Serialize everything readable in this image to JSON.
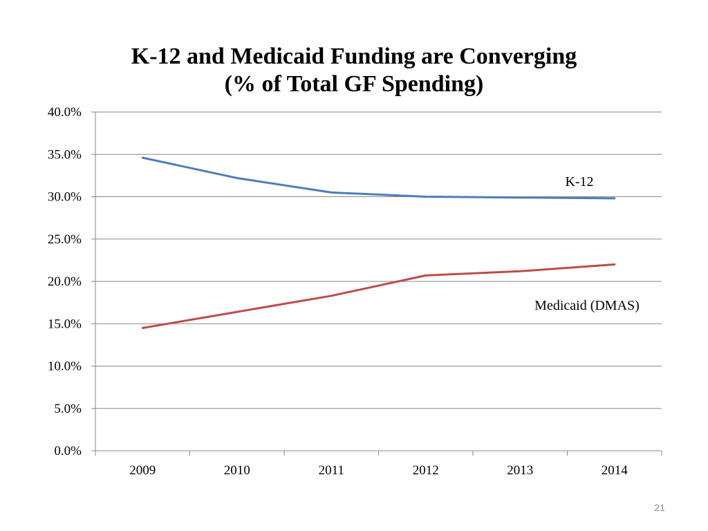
{
  "chart_data": {
    "type": "line",
    "title": "K-12 and Medicaid Funding are Converging",
    "subtitle": "(% of Total GF Spending)",
    "categories": [
      "2009",
      "2010",
      "2011",
      "2012",
      "2013",
      "2014"
    ],
    "series": [
      {
        "name": "K-12",
        "values": [
          34.6,
          32.2,
          30.5,
          30.0,
          29.9,
          29.8
        ],
        "color": "#4a7ebb"
      },
      {
        "name": "Medicaid (DMAS)",
        "values": [
          14.5,
          16.4,
          18.3,
          20.7,
          21.2,
          22.0
        ],
        "color": "#be4b48"
      }
    ],
    "ylim": [
      0,
      40
    ],
    "yticks": [
      0,
      5,
      10,
      15,
      20,
      25,
      30,
      35,
      40
    ],
    "ytick_labels": [
      "0.0%",
      "5.0%",
      "10.0%",
      "15.0%",
      "20.0%",
      "25.0%",
      "30.0%",
      "35.0%",
      "40.0%"
    ],
    "xlabel": "",
    "ylabel": "",
    "grid": true,
    "gridline_color": "#878787"
  },
  "slide": {
    "page_number": "21"
  }
}
